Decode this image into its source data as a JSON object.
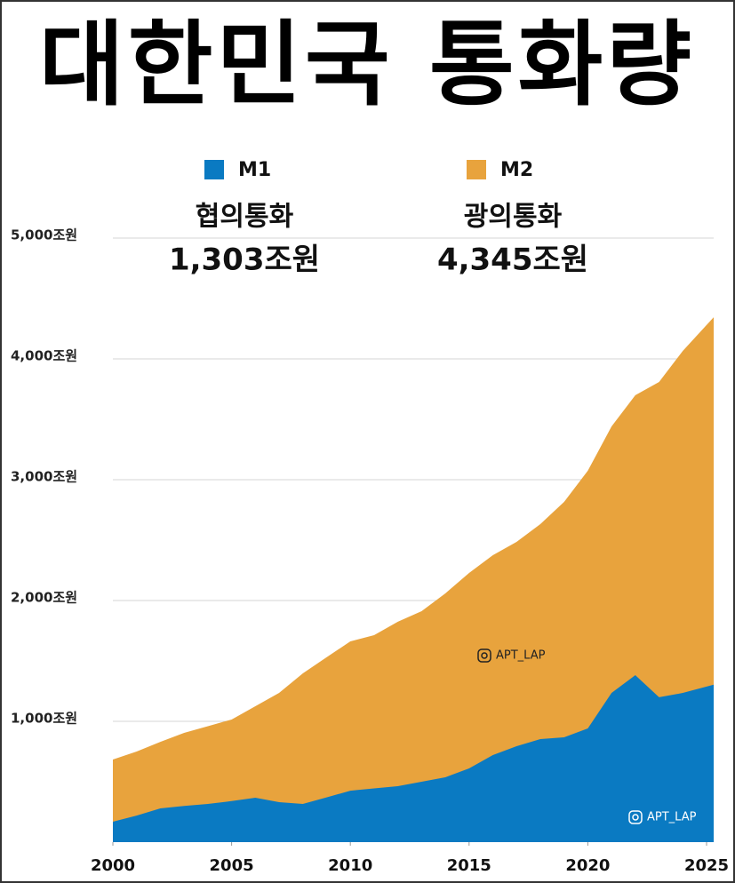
{
  "chart_data": {
    "type": "area",
    "title": "대한민국 통화량",
    "x": [
      2000,
      2001,
      2002,
      2003,
      2004,
      2005,
      2006,
      2007,
      2008,
      2009,
      2010,
      2011,
      2012,
      2013,
      2014,
      2015,
      2016,
      2017,
      2018,
      2019,
      2020,
      2021,
      2022,
      2023,
      2024,
      2025.3
    ],
    "series": [
      {
        "name": "M2",
        "color": "#e8a33d",
        "values": [
          684,
          750,
          830,
          904,
          960,
          1015,
          1125,
          1235,
          1397,
          1530,
          1662,
          1713,
          1824,
          1912,
          2059,
          2228,
          2375,
          2485,
          2632,
          2816,
          3074,
          3441,
          3699,
          3809,
          4066,
          4345
        ]
      },
      {
        "name": "M1",
        "color": "#0a7ac2",
        "values": [
          169,
          220,
          279,
          300,
          316,
          340,
          368,
          331,
          316,
          370,
          426,
          445,
          463,
          500,
          537,
          610,
          721,
          794,
          853,
          868,
          941,
          1235,
          1382,
          1199,
          1235,
          1303
        ]
      }
    ],
    "annotations": [
      "협의통화",
      "1,303조원",
      "광의통화",
      "4,345조원"
    ],
    "watermarks": [
      "APT_LAP",
      "APT_LAP"
    ],
    "xlim": [
      2000,
      2025
    ],
    "xticks": [
      2000,
      2005,
      2010,
      2015,
      2020,
      2025
    ],
    "ylim": [
      0,
      5000
    ],
    "yticks": [
      {
        "value": 1000,
        "label": "1,000조원"
      },
      {
        "value": 2000,
        "label": "2,000조원"
      },
      {
        "value": 3000,
        "label": "3,000조원"
      },
      {
        "value": 4000,
        "label": "4,000조원"
      },
      {
        "value": 5000,
        "label": "5,000조원"
      }
    ],
    "grid": true
  }
}
